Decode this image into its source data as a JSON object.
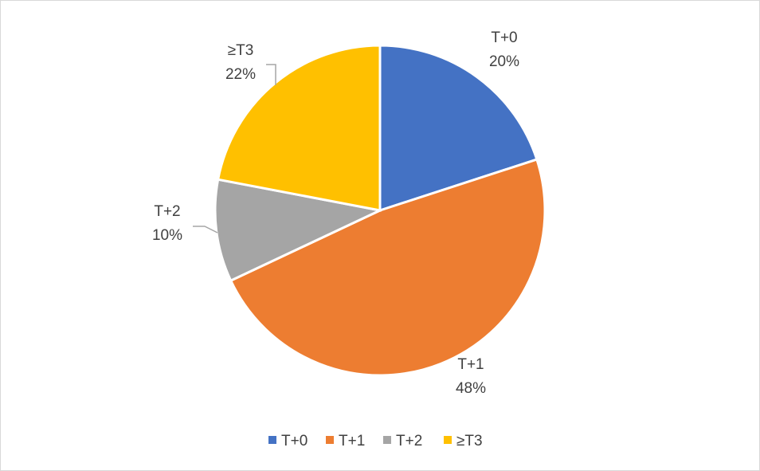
{
  "chart_data": {
    "type": "pie",
    "categories": [
      "T+0",
      "T+1",
      "T+2",
      "≥T3"
    ],
    "values": [
      20,
      48,
      10,
      22
    ],
    "value_labels": [
      "20%",
      "48%",
      "10%",
      "22%"
    ],
    "colors": [
      "#4472C4",
      "#ED7D31",
      "#A5A5A5",
      "#FFC000"
    ],
    "legend_position": "bottom",
    "legend": [
      "T+0",
      "T+1",
      "T+2",
      "≥T3"
    ]
  }
}
